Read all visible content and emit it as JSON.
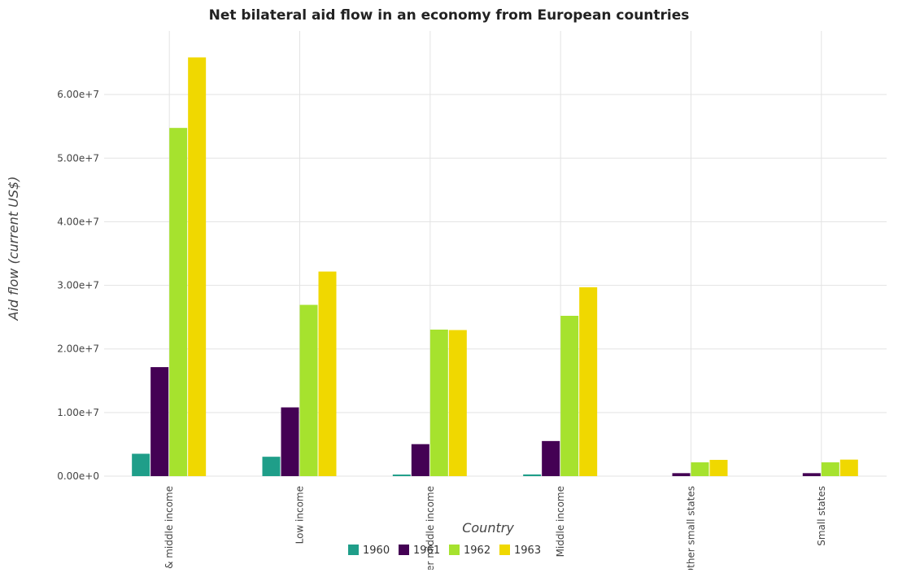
{
  "chart_data": {
    "type": "bar",
    "title": "Net bilateral aid flow in an economy from European countries",
    "xlabel": "Country",
    "ylabel": "Aid flow (current US$)",
    "categories": [
      "Low & middle income",
      "Low income",
      "Lower middle income",
      "Middle income",
      "Other small states",
      "Small states"
    ],
    "series": [
      {
        "name": "1960",
        "color": "#1f9e89",
        "values": [
          3520000,
          3050000,
          250000,
          270000,
          0,
          0
        ]
      },
      {
        "name": "1961",
        "color": "#440154",
        "values": [
          17140000,
          10810000,
          5030000,
          5520000,
          470000,
          470000
        ]
      },
      {
        "name": "1962",
        "color": "#a6e22e",
        "values": [
          54750000,
          26930000,
          23040000,
          25210000,
          2170000,
          2170000
        ]
      },
      {
        "name": "1963",
        "color": "#f0d800",
        "values": [
          65840000,
          32170000,
          22970000,
          29700000,
          2560000,
          2600000
        ]
      }
    ],
    "ylim": [
      0,
      70000000
    ],
    "yticks": [
      0,
      10000000,
      20000000,
      30000000,
      40000000,
      50000000,
      60000000
    ],
    "ytick_labels": [
      "0.00e+0",
      "1.00e+7",
      "2.00e+7",
      "3.00e+7",
      "4.00e+7",
      "5.00e+7",
      "6.00e+7"
    ],
    "grid": true,
    "legend_position": "bottom"
  }
}
